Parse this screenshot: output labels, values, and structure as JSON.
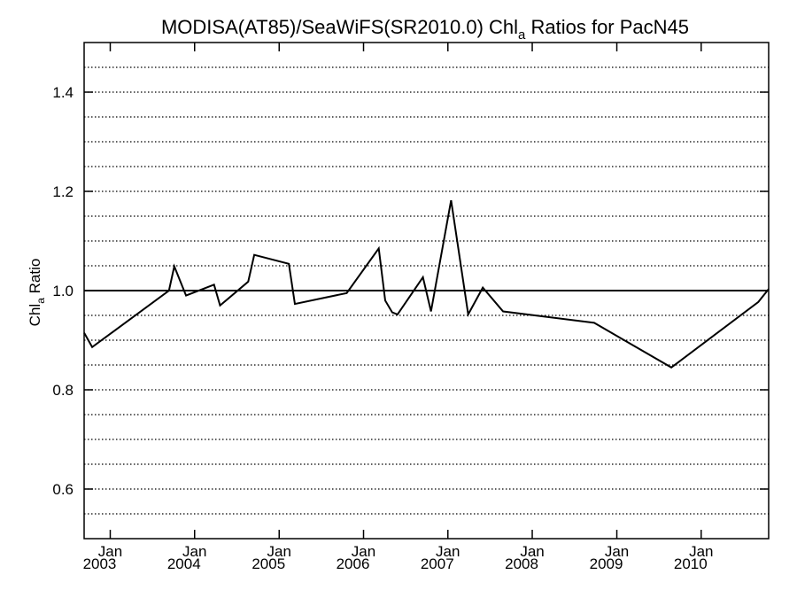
{
  "chart_data": {
    "type": "line",
    "title": {
      "prefix": "MODISA(AT85)/SeaWiFS(SR2010.0)  Chl",
      "subscript": "a",
      "suffix": " Ratios for PacN45"
    },
    "ylabel": {
      "prefix": "Chl",
      "subscript": "a",
      "suffix": " Ratio"
    },
    "ylim": [
      0.5,
      1.5
    ],
    "y_ticks": [
      {
        "value": 0.6,
        "label": "0.6"
      },
      {
        "value": 0.8,
        "label": "0.8"
      },
      {
        "value": 1.0,
        "label": "1.0"
      },
      {
        "value": 1.2,
        "label": "1.2"
      },
      {
        "value": 1.4,
        "label": "1.4"
      }
    ],
    "xlim": [
      "2002-09-10",
      "2010-10-20"
    ],
    "x_ticks": [
      {
        "date": "2003-01-01",
        "month": "Jan",
        "year": "2003"
      },
      {
        "date": "2004-01-01",
        "month": "Jan",
        "year": "2004"
      },
      {
        "date": "2005-01-01",
        "month": "Jan",
        "year": "2005"
      },
      {
        "date": "2006-01-01",
        "month": "Jan",
        "year": "2006"
      },
      {
        "date": "2007-01-01",
        "month": "Jan",
        "year": "2007"
      },
      {
        "date": "2008-01-01",
        "month": "Jan",
        "year": "2008"
      },
      {
        "date": "2009-01-01",
        "month": "Jan",
        "year": "2009"
      },
      {
        "date": "2010-01-01",
        "month": "Jan",
        "year": "2010"
      }
    ],
    "reference_line": 1.0,
    "grid": "horizontal dotted",
    "series": [
      {
        "x": [
          "2002-09-10",
          "2002-10-15",
          "2003-09-12",
          "2003-10-05",
          "2003-11-25",
          "2004-03-25",
          "2004-04-20",
          "2004-08-20",
          "2004-09-15",
          "2005-02-12",
          "2005-03-10",
          "2005-10-20",
          "2006-03-08",
          "2006-04-05",
          "2006-05-05",
          "2006-05-28",
          "2006-09-15",
          "2006-10-20",
          "2007-01-15",
          "2007-03-30",
          "2007-06-01",
          "2007-08-28",
          "2008-09-25",
          "2009-08-25",
          "2010-09-05",
          "2010-10-20"
        ],
        "y": [
          0.915,
          0.886,
          1.0,
          1.049,
          0.99,
          1.012,
          0.97,
          1.018,
          1.072,
          1.054,
          0.973,
          0.995,
          1.085,
          0.98,
          0.956,
          0.952,
          1.027,
          0.958,
          1.182,
          0.952,
          1.006,
          0.958,
          0.935,
          0.845,
          0.977,
          1.003
        ]
      }
    ]
  }
}
